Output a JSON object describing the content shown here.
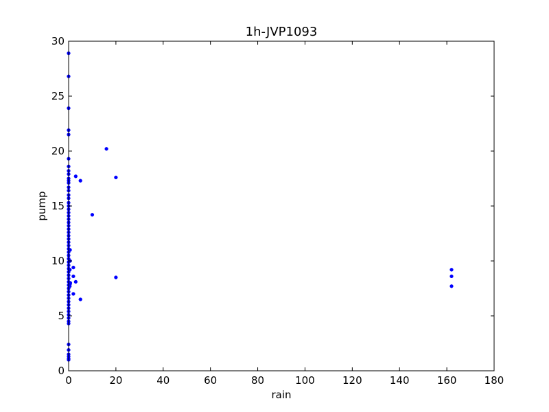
{
  "chart_data": {
    "type": "scatter",
    "title": "1h-JVP1093",
    "xlabel": "rain",
    "ylabel": "pump",
    "xlim": [
      0,
      180
    ],
    "ylim": [
      0,
      30
    ],
    "xticks": [
      0,
      20,
      40,
      60,
      80,
      100,
      120,
      140,
      160,
      180
    ],
    "yticks": [
      0,
      5,
      10,
      15,
      20,
      25,
      30
    ],
    "grid": false,
    "legend": "none",
    "marker_color": "#0000ff",
    "points": [
      [
        0,
        28.9
      ],
      [
        0,
        26.8
      ],
      [
        0,
        23.9
      ],
      [
        0,
        21.9
      ],
      [
        0,
        21.5
      ],
      [
        0,
        19.3
      ],
      [
        0,
        18.6
      ],
      [
        0,
        18.2
      ],
      [
        0,
        17.9
      ],
      [
        0,
        17.5
      ],
      [
        0,
        17.3
      ],
      [
        0,
        17.1
      ],
      [
        0,
        16.7
      ],
      [
        0,
        16.4
      ],
      [
        0,
        16.0
      ],
      [
        0,
        15.7
      ],
      [
        0,
        15.3
      ],
      [
        0,
        15.0
      ],
      [
        0,
        14.7
      ],
      [
        0,
        14.4
      ],
      [
        0,
        14.1
      ],
      [
        0,
        13.8
      ],
      [
        0,
        13.5
      ],
      [
        0,
        13.2
      ],
      [
        0,
        12.9
      ],
      [
        0,
        12.6
      ],
      [
        0,
        12.3
      ],
      [
        0,
        12.0
      ],
      [
        0,
        11.7
      ],
      [
        0,
        11.4
      ],
      [
        0,
        11.1
      ],
      [
        0,
        10.8
      ],
      [
        0,
        10.5
      ],
      [
        0,
        10.2
      ],
      [
        0,
        9.9
      ],
      [
        0,
        9.6
      ],
      [
        0,
        9.3
      ],
      [
        0,
        9.0
      ],
      [
        0,
        8.7
      ],
      [
        0,
        8.4
      ],
      [
        0,
        8.1
      ],
      [
        0,
        7.8
      ],
      [
        0,
        7.5
      ],
      [
        0,
        7.2
      ],
      [
        0,
        6.9
      ],
      [
        0,
        6.6
      ],
      [
        0,
        6.3
      ],
      [
        0,
        6.0
      ],
      [
        0,
        5.7
      ],
      [
        0,
        5.4
      ],
      [
        0,
        5.1
      ],
      [
        0,
        4.8
      ],
      [
        0,
        4.5
      ],
      [
        0,
        4.3
      ],
      [
        0,
        2.4
      ],
      [
        0,
        1.9
      ],
      [
        0,
        1.5
      ],
      [
        0,
        1.3
      ],
      [
        0,
        1.1
      ],
      [
        0,
        1.0
      ],
      [
        0.6,
        11.0
      ],
      [
        0.6,
        10.0
      ],
      [
        0.5,
        9.2
      ],
      [
        0.6,
        7.9
      ],
      [
        0.5,
        7.7
      ],
      [
        0.7,
        8.0
      ],
      [
        2,
        9.4
      ],
      [
        2,
        8.6
      ],
      [
        2,
        7.0
      ],
      [
        3,
        17.7
      ],
      [
        3,
        8.1
      ],
      [
        5,
        17.3
      ],
      [
        5,
        6.5
      ],
      [
        10,
        14.2
      ],
      [
        16,
        20.2
      ],
      [
        20,
        17.6
      ],
      [
        20,
        8.5
      ],
      [
        162,
        9.2
      ],
      [
        162,
        8.6
      ],
      [
        162,
        7.7
      ]
    ]
  }
}
